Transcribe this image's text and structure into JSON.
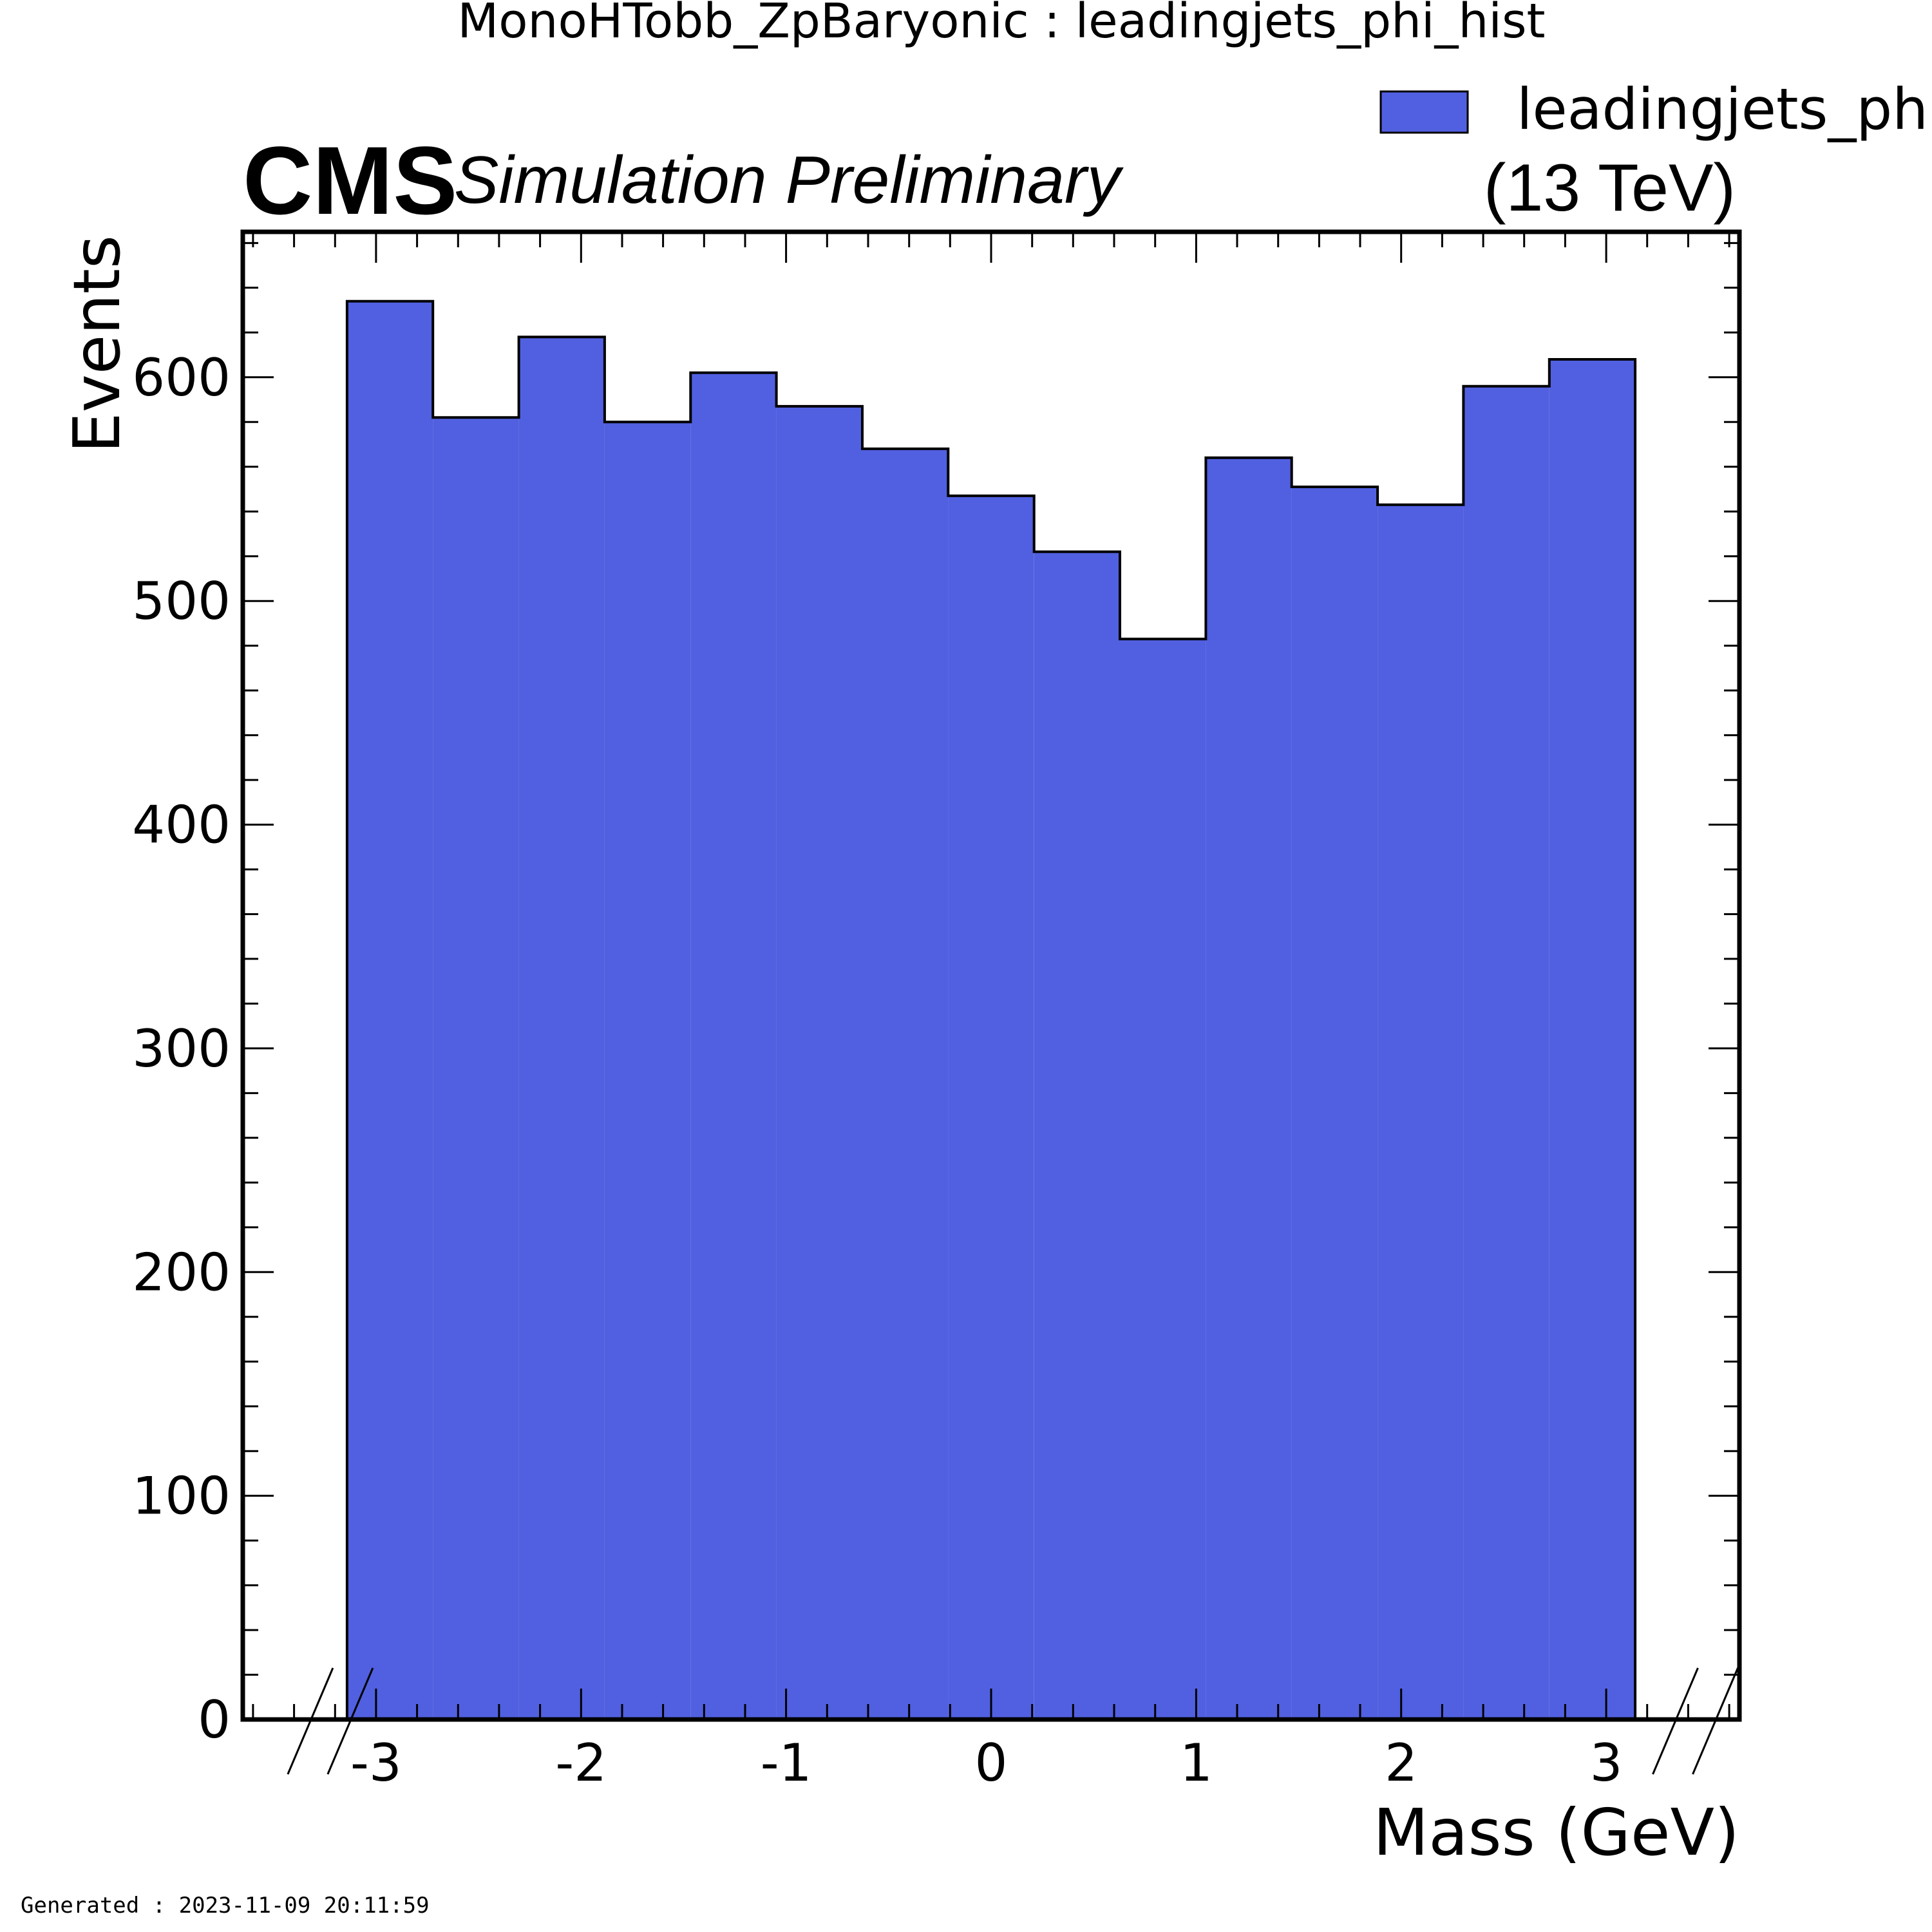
{
  "figure": {
    "title": "MonoHTobb_ZpBaryonic : leadingjets_phi_hist",
    "cms_label": "CMS",
    "cms_sublabel": "Simulation Preliminary",
    "energy_label": "(13 TeV)",
    "footer": "Generated : 2023-11-09 20:11:59"
  },
  "chart_data": {
    "type": "bar",
    "histogram": true,
    "xlabel": "Mass (GeV)",
    "ylabel": "Events",
    "xlim": [
      -3.65,
      3.65
    ],
    "ylim": [
      0,
      665
    ],
    "x_ticks": [
      -3,
      -2,
      -1,
      0,
      1,
      2,
      3
    ],
    "x_tick_labels": [
      "-3",
      "-2",
      "-1",
      "0",
      "1",
      "2",
      "3"
    ],
    "y_ticks": [
      0,
      100,
      200,
      300,
      400,
      500,
      600
    ],
    "y_tick_labels": [
      "0",
      "100",
      "200",
      "300",
      "400",
      "500",
      "600"
    ],
    "bin_edges": [
      -3.1416,
      -2.7227,
      -2.3038,
      -1.885,
      -1.4661,
      -1.0472,
      -0.6283,
      -0.2094,
      0.2094,
      0.6283,
      1.0472,
      1.4661,
      1.885,
      2.3038,
      2.7227,
      3.1416
    ],
    "series": [
      {
        "name": "leadingjets_phi_",
        "color": "#5160e0",
        "edge_color": "#000000",
        "values": [
          634,
          582,
          618,
          580,
          602,
          587,
          568,
          547,
          522,
          483,
          564,
          551,
          543,
          596,
          608
        ]
      }
    ],
    "legend": {
      "position": "top-right"
    },
    "grid": false
  }
}
